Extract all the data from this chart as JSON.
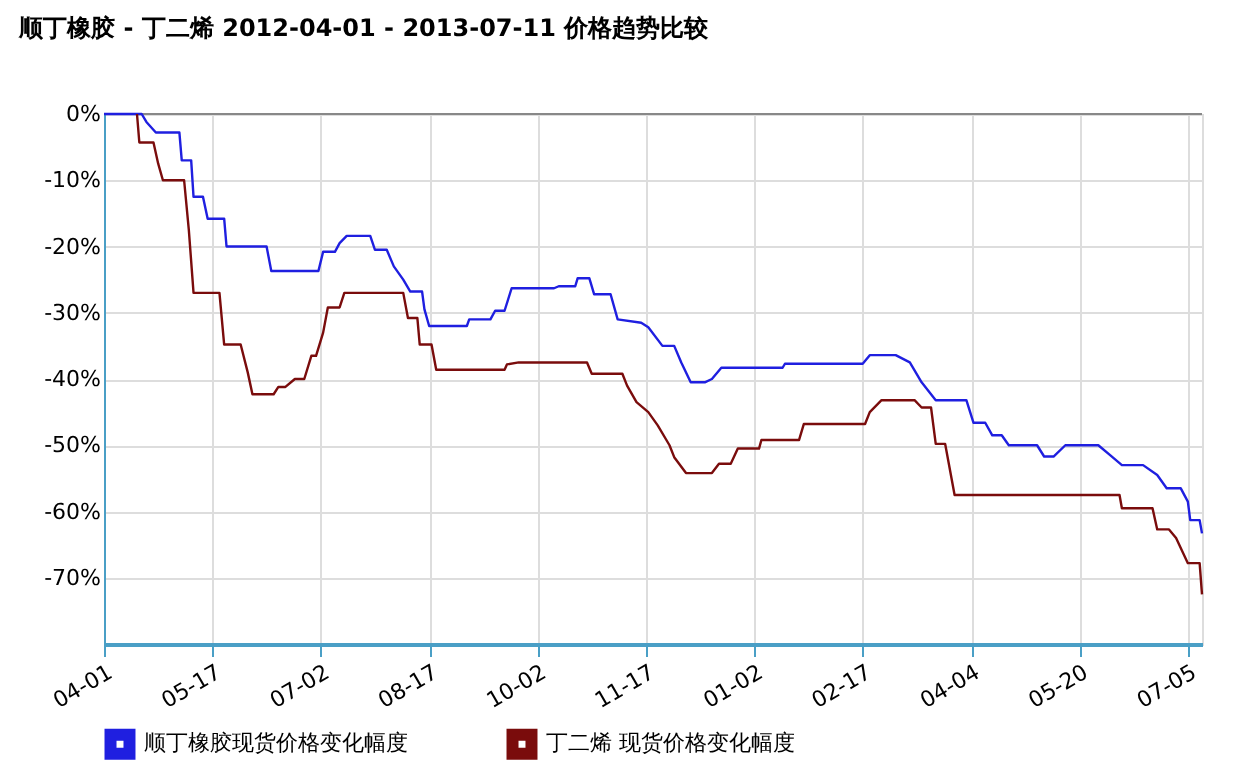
{
  "chart_data": {
    "type": "line",
    "title": "顺丁橡胶 - 丁二烯 2012-04-01 - 2013-07-11 价格趋势比较",
    "x": [
      "2012-04-01",
      "2012-04-17",
      "2012-04-19",
      "2012-04-23",
      "2012-05-03",
      "2012-05-04",
      "2012-05-08",
      "2012-05-09",
      "2012-05-13",
      "2012-05-15",
      "2012-05-22",
      "2012-05-23",
      "2012-06-09",
      "2012-06-11",
      "2012-07-01",
      "2012-07-03",
      "2012-07-08",
      "2012-07-10",
      "2012-07-13",
      "2012-07-23",
      "2012-07-25",
      "2012-07-30",
      "2012-08-02",
      "2012-08-06",
      "2012-08-09",
      "2012-08-14",
      "2012-08-15",
      "2012-08-17",
      "2012-09-02",
      "2012-09-03",
      "2012-09-12",
      "2012-09-14",
      "2012-09-18",
      "2012-09-21",
      "2012-10-09",
      "2012-10-11",
      "2012-10-18",
      "2012-10-19",
      "2012-10-24",
      "2012-10-26",
      "2012-11-02",
      "2012-11-05",
      "2012-11-15",
      "2012-11-18",
      "2012-11-24",
      "2012-11-29",
      "2012-12-02",
      "2012-12-06",
      "2012-12-12",
      "2012-12-15",
      "2012-12-19",
      "2013-01-14",
      "2013-01-15",
      "2013-02-17",
      "2013-02-20",
      "2013-03-03",
      "2013-03-09",
      "2013-03-14",
      "2013-03-20",
      "2013-04-02",
      "2013-04-05",
      "2013-04-10",
      "2013-04-13",
      "2013-04-17",
      "2013-04-20",
      "2013-05-02",
      "2013-05-05",
      "2013-05-09",
      "2013-05-14",
      "2013-05-28",
      "2013-06-02",
      "2013-06-07",
      "2013-06-16",
      "2013-06-22",
      "2013-06-26",
      "2013-07-02",
      "2013-07-05",
      "2013-07-06",
      "2013-07-10",
      "2013-07-11"
    ],
    "series": [
      {
        "name": "顺丁橡胶现货价格变化幅度",
        "color": "#1f1fe0",
        "values": [
          0,
          0,
          -1.2,
          -2.8,
          -2.8,
          -7,
          -7,
          -12.5,
          -12.5,
          -15.8,
          -15.8,
          -20,
          -20,
          -23.7,
          -23.7,
          -20.8,
          -20.8,
          -19.5,
          -18.4,
          -18.4,
          -20.5,
          -20.5,
          -23,
          -25,
          -26.8,
          -26.8,
          -29.5,
          -32,
          -32,
          -31,
          -31,
          -29.7,
          -29.7,
          -26.3,
          -26.3,
          -26,
          -26,
          -24.8,
          -24.8,
          -27.2,
          -27.2,
          -31,
          -31.5,
          -32.2,
          -35,
          -35,
          -37.5,
          -40.5,
          -40.5,
          -40,
          -38.3,
          -38.3,
          -37.7,
          -37.7,
          -36.4,
          -36.4,
          -37.5,
          -40.5,
          -43.2,
          -43.2,
          -46.6,
          -46.6,
          -48.5,
          -48.5,
          -50,
          -50,
          -51.7,
          -51.7,
          -50,
          -50,
          -51.5,
          -53,
          -53,
          -54.5,
          -56.5,
          -56.5,
          -58.5,
          -61.3,
          -61.3,
          -63.3
        ]
      },
      {
        "name": "丁二烯 现货价格变化幅度",
        "color": "#7a0c0c",
        "x": [
          "2012-04-15",
          "2012-04-16",
          "2012-04-22",
          "2012-04-24",
          "2012-04-26",
          "2012-05-05",
          "2012-05-07",
          "2012-05-09",
          "2012-05-20",
          "2012-05-22",
          "2012-05-29",
          "2012-06-01",
          "2012-06-03",
          "2012-06-12",
          "2012-06-14",
          "2012-06-17",
          "2012-06-21",
          "2012-06-25",
          "2012-06-28",
          "2012-06-30",
          "2012-07-03",
          "2012-07-05",
          "2012-07-10",
          "2012-07-12",
          "2012-08-06",
          "2012-08-08",
          "2012-08-12",
          "2012-08-13",
          "2012-08-18",
          "2012-08-20",
          "2012-09-18",
          "2012-09-19",
          "2012-09-24",
          "2012-10-23",
          "2012-10-25",
          "2012-11-07",
          "2012-11-09",
          "2012-11-13",
          "2012-11-18",
          "2012-11-22",
          "2012-11-27",
          "2012-11-29",
          "2012-12-04",
          "2012-12-15",
          "2012-12-18",
          "2012-12-23",
          "2012-12-26",
          "2013-01-04",
          "2013-01-05",
          "2013-01-21",
          "2013-01-23",
          "2013-02-18",
          "2013-02-20",
          "2013-02-25",
          "2013-03-11",
          "2013-03-14",
          "2013-03-18",
          "2013-03-20",
          "2013-03-24",
          "2013-03-28",
          "2013-06-06",
          "2013-06-07",
          "2013-06-20",
          "2013-06-22",
          "2013-06-27",
          "2013-06-30",
          "2013-07-05",
          "2013-07-10",
          "2013-07-11"
        ],
        "values": [
          0,
          -4.3,
          -4.3,
          -7.5,
          -10,
          -10,
          -17.5,
          -27,
          -27,
          -34.8,
          -34.8,
          -39,
          -42.3,
          -42.3,
          -41.2,
          -41.2,
          -40,
          -40,
          -36.5,
          -36.5,
          -33,
          -29.2,
          -29.2,
          -27,
          -27,
          -30.8,
          -30.8,
          -34.8,
          -34.8,
          -38.6,
          -38.6,
          -37.8,
          -37.5,
          -37.5,
          -39.2,
          -39.2,
          -41,
          -43.5,
          -45,
          -47,
          -50,
          -51.8,
          -54.2,
          -54.2,
          -52.8,
          -52.8,
          -50.5,
          -50.5,
          -49.2,
          -49.2,
          -46.8,
          -46.8,
          -45,
          -43.2,
          -43.2,
          -44.3,
          -44.3,
          -49.8,
          -49.8,
          -57.5,
          -57.5,
          -59.5,
          -59.5,
          -62.7,
          -62.7,
          -64,
          -67.8,
          -67.8,
          -72.5
        ]
      }
    ],
    "xlim": [
      "2012-04-01",
      "2013-07-11"
    ],
    "xticks": [
      {
        "value": "2012-04-01",
        "label": "04-01"
      },
      {
        "value": "2012-05-17",
        "label": "05-17"
      },
      {
        "value": "2012-07-02",
        "label": "07-02"
      },
      {
        "value": "2012-08-17",
        "label": "08-17"
      },
      {
        "value": "2012-10-02",
        "label": "10-02"
      },
      {
        "value": "2012-11-17",
        "label": "11-17"
      },
      {
        "value": "2013-01-02",
        "label": "01-02"
      },
      {
        "value": "2013-02-17",
        "label": "02-17"
      },
      {
        "value": "2013-04-04",
        "label": "04-04"
      },
      {
        "value": "2013-05-20",
        "label": "05-20"
      },
      {
        "value": "2013-07-05",
        "label": "07-05"
      }
    ],
    "ylim": [
      -80,
      0
    ],
    "yticks": [
      {
        "value": 0,
        "label": "0%"
      },
      {
        "value": -10,
        "label": "-10%"
      },
      {
        "value": -20,
        "label": "-20%"
      },
      {
        "value": -30,
        "label": "-30%"
      },
      {
        "value": -40,
        "label": "-40%"
      },
      {
        "value": -50,
        "label": "-50%"
      },
      {
        "value": -60,
        "label": "-60%"
      },
      {
        "value": -70,
        "label": "-70%"
      }
    ],
    "grid": true,
    "legend": "bottom",
    "marker": "none",
    "line_style": "solid"
  }
}
